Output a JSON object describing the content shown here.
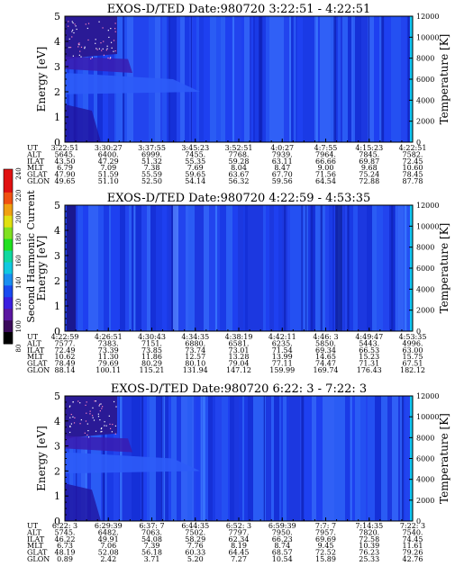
{
  "panels": [
    {
      "title": "EXOS-D/TED   Date:980720  3:22:51 - 4:22:51",
      "ylabel_left": "Energy [eV]",
      "ylabel_right": "Temperature [K]",
      "yticks_left": [
        "0",
        "1",
        "2",
        "3",
        "4",
        "5"
      ],
      "yticks_right": [
        "0",
        "2000",
        "4000",
        "6000",
        "8000",
        "10000",
        "12000"
      ],
      "xticks": [
        "3:22:51",
        "3:30:27",
        "3:37:55",
        "3:45:23",
        "3:52:51",
        "4:0:27",
        "4:7:55",
        "4:15:23",
        "4:22:51"
      ],
      "row_labels": [
        "UT",
        "ALT",
        "ILAT",
        "MLT",
        "GLAT",
        "GLON"
      ],
      "rows": [
        [
          "5645.",
          "6400.",
          "6999.",
          "7455.",
          "7768.",
          "7939.",
          "7964.",
          "7845.",
          "7582."
        ],
        [
          "43.50",
          "47.29",
          "51.32",
          "55.35",
          "59.28",
          "63.11",
          "66.66",
          "69.87",
          "72.45"
        ],
        [
          "6.79",
          "7.09",
          "7.38",
          "7.69",
          "8.04",
          "8.47",
          "9.00",
          "9.68",
          "10.60"
        ],
        [
          "47.90",
          "51.59",
          "55.59",
          "59.65",
          "63.67",
          "67.70",
          "71.56",
          "75.24",
          "78.45"
        ],
        [
          "49.65",
          "51.10",
          "52.50",
          "54.14",
          "56.32",
          "59.56",
          "64.54",
          "72.88",
          "87.78"
        ]
      ]
    },
    {
      "title": "EXOS-D/TED   Date:980720  4:22:59 - 4:53:35",
      "ylabel_left": "Energy [eV]",
      "ylabel_right": "Temperature [K]",
      "yticks_left": [
        "0",
        "1",
        "2",
        "3",
        "4",
        "5"
      ],
      "yticks_right": [
        "0",
        "2000",
        "4000",
        "6000",
        "8000",
        "10000",
        "12000"
      ],
      "xticks": [
        "4:22:59",
        "4:26:51",
        "4:30:43",
        "4:34:35",
        "4:38:19",
        "4:42:11",
        "4:46: 3",
        "4:49:47",
        "4:53:35"
      ],
      "row_labels": [
        "UT",
        "ALT",
        "ILAT",
        "MLT",
        "GLAT",
        "GLON"
      ],
      "rows": [
        [
          "7577.",
          "7383.",
          "7151.",
          "6880.",
          "6581.",
          "6235.",
          "5850.",
          "5443.",
          "4996."
        ],
        [
          "72.49",
          "73.39",
          "73.85",
          "73.74",
          "73.01",
          "71.54",
          "69.34",
          "66.53",
          "63.00"
        ],
        [
          "10.62",
          "11.30",
          "11.86",
          "12.57",
          "13.28",
          "13.99",
          "14.65",
          "15.23",
          "15.75"
        ],
        [
          "78.49",
          "79.69",
          "80.29",
          "80.10",
          "79.04",
          "77.11",
          "74.47",
          "71.31",
          "67.51"
        ],
        [
          "88.14",
          "100.11",
          "115.21",
          "131.94",
          "147.12",
          "159.99",
          "169.74",
          "176.43",
          "182.12"
        ]
      ]
    },
    {
      "title": "EXOS-D/TED   Date:980720  6:22: 3 - 7:22: 3",
      "ylabel_left": "Energy [eV]",
      "ylabel_right": "Temperature [K]",
      "yticks_left": [
        "0",
        "1",
        "2",
        "3",
        "4",
        "5"
      ],
      "yticks_right": [
        "0",
        "2000",
        "4000",
        "6000",
        "8000",
        "10000",
        "12000"
      ],
      "xticks": [
        "6:22: 3",
        "6:29:39",
        "6:37: 7",
        "6:44:35",
        "6:52: 3",
        "6:59:39",
        "7:7: 7",
        "7:14:35",
        "7:22: 3"
      ],
      "row_labels": [
        "UT",
        "ALT",
        "ILAT",
        "MLT",
        "GLAT",
        "GLON"
      ],
      "rows": [
        [
          "5745.",
          "6482.",
          "7063.",
          "7502.",
          "7797.",
          "7950.",
          "7957.",
          "7820.",
          "7540."
        ],
        [
          "46.22",
          "49.91",
          "54.08",
          "58.29",
          "62.34",
          "66.23",
          "69.69",
          "72.58",
          "74.45"
        ],
        [
          "6.73",
          "7.06",
          "7.39",
          "7.76",
          "8.19",
          "8.74",
          "9.45",
          "10.39",
          "11.61"
        ],
        [
          "48.19",
          "52.08",
          "56.18",
          "60.33",
          "64.45",
          "68.57",
          "72.52",
          "76.23",
          "79.26"
        ],
        [
          "0.89",
          "2.42",
          "3.71",
          "5.20",
          "7.27",
          "10.54",
          "15.89",
          "25.33",
          "42.76"
        ]
      ]
    }
  ],
  "colorbar": {
    "label": "Second Harmonic Current",
    "ticks": [
      "80",
      "100",
      "120",
      "140",
      "160",
      "180",
      "200",
      "220",
      "240"
    ],
    "colors": [
      "#000000",
      "#3a0a5a",
      "#5a16a0",
      "#3a1ee0",
      "#1a4af0",
      "#1a8ef0",
      "#10c8e0",
      "#10d8a0",
      "#20e020",
      "#80e020",
      "#e0e010",
      "#f0a010",
      "#f05010",
      "#e01010",
      "#e01010"
    ]
  },
  "chart_data": [
    {
      "type": "heatmap",
      "title": "EXOS-D/TED   Date:980720  3:22:51 - 4:22:51",
      "ylabel": "Energy [eV]",
      "y2label": "Temperature [K]",
      "ylim": [
        0,
        5
      ],
      "y2lim": [
        0,
        12000
      ],
      "x": [
        "3:22:51",
        "3:30:27",
        "3:37:55",
        "3:45:23",
        "3:52:51",
        "4:0:27",
        "4:7:55",
        "4:15:23",
        "4:22:51"
      ],
      "colorbar_label": "Second Harmonic Current",
      "colorbar_range": [
        80,
        240
      ]
    },
    {
      "type": "heatmap",
      "title": "EXOS-D/TED   Date:980720  4:22:59 - 4:53:35",
      "ylabel": "Energy [eV]",
      "y2label": "Temperature [K]",
      "ylim": [
        0,
        5
      ],
      "y2lim": [
        0,
        12000
      ],
      "x": [
        "4:22:59",
        "4:26:51",
        "4:30:43",
        "4:34:35",
        "4:38:19",
        "4:42:11",
        "4:46: 3",
        "4:49:47",
        "4:53:35"
      ],
      "colorbar_label": "Second Harmonic Current",
      "colorbar_range": [
        80,
        240
      ]
    },
    {
      "type": "heatmap",
      "title": "EXOS-D/TED   Date:980720  6:22: 3 - 7:22: 3",
      "ylabel": "Energy [eV]",
      "y2label": "Temperature [K]",
      "ylim": [
        0,
        5
      ],
      "y2lim": [
        0,
        12000
      ],
      "x": [
        "6:22: 3",
        "6:29:39",
        "6:37: 7",
        "6:44:35",
        "6:52: 3",
        "6:59:39",
        "7:7: 7",
        "7:14:35",
        "7:22: 3"
      ],
      "colorbar_label": "Second Harmonic Current",
      "colorbar_range": [
        80,
        240
      ]
    }
  ]
}
